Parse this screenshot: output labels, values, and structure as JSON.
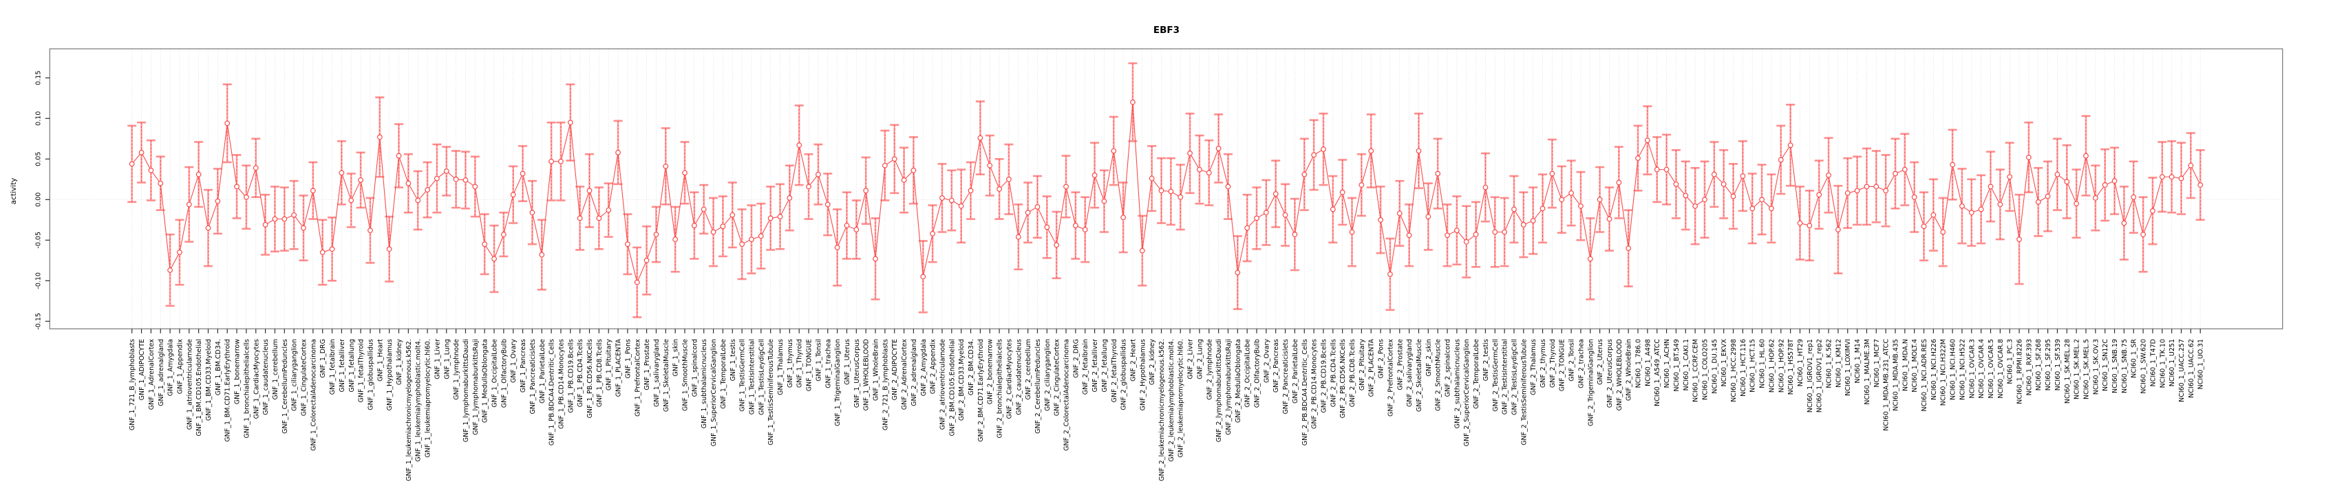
{
  "chart_data": {
    "type": "line",
    "title": "EBF3",
    "xlabel": "",
    "ylabel": "activity",
    "ylim": [
      -0.1593,
      0.1858
    ],
    "yticks": [
      0.15,
      0.1,
      0.05,
      0.0,
      -0.05,
      -0.1,
      -0.15
    ],
    "ytick_labels": [
      "0.15",
      "0.10",
      "0.05",
      "0.00",
      "-0.05",
      "-0.10",
      "-0.15"
    ],
    "grid": "dotted vertical gridline per category; dotted horizontal line at y=0",
    "legend": "none",
    "marker": "open-circle",
    "error_bars": "symmetric, capped, dashed center line",
    "colors": {
      "line": "#f84b4b",
      "point": "#f84b4b",
      "error_dash": "#f84b4b",
      "error_line": "#ffa4a4",
      "error_cap": "#ff8c8c",
      "grid": "#d4d4d4",
      "zero_line": "#dcdcdc",
      "frame": "#818181",
      "tick": "#2b2b2b",
      "text": "#000000"
    },
    "categories": [
      "GNF_1_721_B_lymphoblasts",
      "GNF_1_ADIPOCYTE",
      "GNF_1_AdrenalCortex",
      "GNF_1_adrenalgland",
      "GNF_1_Amygdala",
      "GNF_1_Appendix",
      "GNF_1_atrioventricularnode",
      "GNF_1_BM.CD105.Endothelial",
      "GNF_1_BM.CD33.Myeloid",
      "GNF_1_BM.CD34.",
      "GNF_1_BM.CD71.EarlyErythroid",
      "GNF_1_bonemarrow",
      "GNF_1_bronchialepithelialcells",
      "GNF_1_CardiacMyocytes",
      "GNF_1_caudatenucleus",
      "GNF_1_cerebellum",
      "GNF_1_CerebellumPeduncles",
      "GNF_1_ciliaryganglion",
      "GNF_1_CingulateCortex",
      "GNF_1_ColorectalAdenocarcinoma",
      "GNF_1_DRG",
      "GNF_1_fetalbrain",
      "GNF_1_fetalliver",
      "GNF_1_fetallung",
      "GNF_1_fetalThyroid",
      "GNF_1_globuspallidus",
      "GNF_1_Heart",
      "GNF_1_Hypothalamus",
      "GNF_1_kidney",
      "GNF_1_leukemiachronicmyelogenous.k562.",
      "GNF_1_leukemialymphoblastic.molt4.",
      "GNF_1_leukemiapromyelocytic.hl60.",
      "GNF_1_Liver",
      "GNF_1_Lung",
      "GNF_1_lymphnode",
      "GNF_1_lymphomaburkittsDaudi",
      "GNF_1_lymphomaburkittsRaji",
      "GNF_1_MedullaOblongata",
      "GNF_1_OccipitalLobe",
      "GNF_1_OlfactoryBulb",
      "GNF_1_Ovary",
      "GNF_1_Pancreas",
      "GNF_1_Pancreaticislets",
      "GNF_1_ParietalLobe",
      "GNF_1_PB.BDCA4.Dentritic_Cells",
      "GNF_1_PB.CD14.Monocytes",
      "GNF_1_PB.CD19.Bcells",
      "GNF_1_PB.CD4.Tcells",
      "GNF_1_PB.CD56.NKCells",
      "GNF_1_PB.CD8.Tcells",
      "GNF_1_Pituitary",
      "GNF_1_PLACENTA",
      "GNF_1_Pons",
      "GNF_1_PrefrontalCortex",
      "GNF_1_Prostate",
      "GNF_1_salivarygland",
      "GNF_1_SkeletalMuscle",
      "GNF_1_skin",
      "GNF_1_SmoothMuscle",
      "GNF_1_spinalcord",
      "GNF_1_subthalamicnucleus",
      "GNF_1_SuperiorCervicalGanglion",
      "GNF_1_TemporalLobe",
      "GNF_1_testis",
      "GNF_1_TestisGermCell",
      "GNF_1_TestisInterstitial",
      "GNF_1_TestisLeydigCell",
      "GNF_1_TestisSeminiferousTubule",
      "GNF_1_Thalamus",
      "GNF_1_thymus",
      "GNF_1_Thyroid",
      "GNF_1_TONGUE",
      "GNF_1_Tonsil",
      "GNF_1_trachea",
      "GNF_1_TrigeminalGanglion",
      "GNF_1_Uterus",
      "GNF_1_UterusCorpus",
      "GNF_1_WHOLEBLOOD",
      "GNF_1_WholeBrain",
      "GNF_2_721_B_lymphoblasts",
      "GNF_2_ADIPOCYTE",
      "GNF_2_AdrenalCortex",
      "GNF_2_adrenalgland",
      "GNF_2_Amygdala",
      "GNF_2_Appendix",
      "GNF_2_atrioventricularnode",
      "GNF_2_BM.CD105.Endothelial",
      "GNF_2_BM.CD33.Myeloid",
      "GNF_2_BM.CD34.",
      "GNF_2_BM.CD71.EarlyErythroid",
      "GNF_2_bonemarrow",
      "GNF_2_bronchialepithelialcells",
      "GNF_2_CardiacMyocytes",
      "GNF_2_caudatenucleus",
      "GNF_2_cerebellum",
      "GNF_2_CerebellumPeduncles",
      "GNF_2_ciliaryganglion",
      "GNF_2_CingulateCortex",
      "GNF_2_ColorectalAdenocarcinoma",
      "GNF_2_DRG",
      "GNF_2_fetalbrain",
      "GNF_2_fetalliver",
      "GNF_2_fetallung",
      "GNF_2_fetalThyroid",
      "GNF_2_globuspallidus",
      "GNF_2_Heart",
      "GNF_2_Hypothalamus",
      "GNF_2_kidney",
      "GNF_2_leukemiachronicmyelogenous.k562.",
      "GNF_2_leukemialymphoblastic.molt4.",
      "GNF_2_leukemiapromyelocytic.hl60.",
      "GNF_2_Liver",
      "GNF_2_Lung",
      "GNF_2_lymphnode",
      "GNF_2_lymphomaburkittsDaudi",
      "GNF_2_lymphomaburkittsRaji",
      "GNF_2_MedullaOblongata",
      "GNF_2_OccipitalLobe",
      "GNF_2_OlfactoryBulb",
      "GNF_2_Ovary",
      "GNF_2_Pancreas",
      "GNF_2_Pancreaticislets",
      "GNF_2_ParietalLobe",
      "GNF_2_PB.BDCA4.Dentritic_Cells",
      "GNF_2_PB.CD14.Monocytes",
      "GNF_2_PB.CD19.Bcells",
      "GNF_2_PB.CD4.Tcells",
      "GNF_2_PB.CD56.NKCells",
      "GNF_2_PB.CD8.Tcells",
      "GNF_2_Pituitary",
      "GNF_2_PLACENTA",
      "GNF_2_Pons",
      "GNF_2_PrefrontalCortex",
      "GNF_2_Prostate",
      "GNF_2_salivarygland",
      "GNF_2_SkeletalMuscle",
      "GNF_2_skin",
      "GNF_2_SmoothMuscle",
      "GNF_2_spinalcord",
      "GNF_2_subthalamicnucleus",
      "GNF_2_SuperiorCervicalGanglion",
      "GNF_2_TemporalLobe",
      "GNF_2_testis",
      "GNF_2_TestisGermCell",
      "GNF_2_TestisInterstitial",
      "GNF_2_TestisLeydigCell",
      "GNF_2_TestisSeminiferousTubule",
      "GNF_2_Thalamus",
      "GNF_2_thymus",
      "GNF_2_Thyroid",
      "GNF_2_TONGUE",
      "GNF_2_Tonsil",
      "GNF_2_trachea",
      "GNF_2_TrigeminalGanglion",
      "GNF_2_Uterus",
      "GNF_2_UterusCorpus",
      "GNF_2_WHOLEBLOOD",
      "GNF_2_WholeBrain",
      "NCI60_1_786.0",
      "NCI60_1_A498",
      "NCI60_1_A549_ATCC",
      "NCI60_1_ACHN",
      "NCI60_1_BT.549",
      "NCI60_1_CAKI.1",
      "NCI60_1_CCRF.CEM",
      "NCI60_1_COLO205",
      "NCI60_1_DU.145",
      "NCI60_1_EKVX",
      "NCI60_1_HCC.2998",
      "NCI60_1_HCT.116",
      "NCI60_1_HCT.15",
      "NCI60_1_HL.60",
      "NCI60_1_HOP.62",
      "NCI60_1_HOP.92",
      "NCI60_1_HS578T",
      "NCI60_1_HT29",
      "NCI60_1_IGROV1_rep1",
      "NCI60_1_IGROV1_rep2",
      "NCI60_1_K.562",
      "NCI60_1_KM12",
      "NCI60_1_LOXIMVI",
      "NCI60_1_M14",
      "NCI60_1_MALME.3M",
      "NCI60_1_MCF7",
      "NCI60_1_MDA.MB.231_ATCC",
      "NCI60_1_MDA.MB.435",
      "NCI60_1_MDA.N",
      "NCI60_1_MOLT.4",
      "NCI60_1_NCI.ADR.RES",
      "NCI60_1_NCI.H226",
      "NCI60_1_NCI.H322M",
      "NCI60_1_NCI.H460",
      "NCI60_1_NCI.H522",
      "NCI60_1_OVCAR.3",
      "NCI60_1_OVCAR.4",
      "NCI60_1_OVCAR.5",
      "NCI60_1_OVCAR.8",
      "NCI60_1_PC.3",
      "NCI60_1_RPMI.8226",
      "NCI60_1_RXF.393",
      "NCI60_1_SF.268",
      "NCI60_1_SF.295",
      "NCI60_1_SF.539",
      "NCI60_1_SK.MEL.28",
      "NCI60_1_SK.MEL.2",
      "NCI60_1_SK.MEL.5",
      "NCI60_1_SK.OV.3",
      "NCI60_1_SN12C",
      "NCI60_1_SNB.19",
      "NCI60_1_SNB.75",
      "NCI60_1_SR",
      "NCI60_1_SW.620",
      "NCI60_1_T47D",
      "NCI60_1_TK.10",
      "NCI60_1_U251",
      "NCI60_1_UACC.257",
      "NCI60_1_UACC.62",
      "NCI60_1_UO.31"
    ],
    "series": [
      {
        "name": "activity",
        "values": [
          0.044,
          0.058,
          0.036,
          0.02,
          -0.087,
          -0.065,
          -0.006,
          0.031,
          -0.035,
          -0.002,
          0.094,
          0.016,
          0.003,
          0.039,
          -0.031,
          -0.024,
          -0.024,
          -0.019,
          -0.035,
          0.011,
          -0.065,
          -0.061,
          0.033,
          -0.001,
          0.024,
          -0.038,
          0.077,
          -0.061,
          0.054,
          0.02,
          -0.001,
          0.012,
          0.026,
          0.035,
          0.025,
          0.024,
          0.016,
          -0.055,
          -0.073,
          -0.043,
          0.006,
          0.032,
          -0.016,
          -0.068,
          0.047,
          0.047,
          0.095,
          -0.023,
          0.011,
          -0.023,
          -0.013,
          0.058,
          -0.055,
          -0.102,
          -0.075,
          -0.043,
          0.041,
          -0.049,
          0.033,
          -0.032,
          -0.012,
          -0.04,
          -0.033,
          -0.019,
          -0.055,
          -0.049,
          -0.045,
          -0.023,
          -0.021,
          0.002,
          0.067,
          0.016,
          0.031,
          -0.006,
          -0.059,
          -0.032,
          -0.037,
          0.011,
          -0.073,
          0.042,
          0.05,
          0.024,
          0.036,
          -0.095,
          -0.042,
          0.002,
          -0.001,
          -0.008,
          0.011,
          0.076,
          0.042,
          0.013,
          0.025,
          -0.046,
          -0.016,
          -0.009,
          -0.034,
          -0.056,
          0.016,
          -0.032,
          -0.037,
          0.03,
          -0.002,
          0.06,
          -0.022,
          0.12,
          -0.063,
          0.026,
          0.011,
          0.01,
          0.003,
          0.057,
          0.037,
          0.033,
          0.063,
          0.016,
          -0.09,
          -0.035,
          -0.023,
          -0.016,
          0.007,
          -0.019,
          -0.043,
          0.031,
          0.055,
          0.062,
          -0.012,
          0.009,
          -0.04,
          0.018,
          0.06,
          -0.025,
          -0.092,
          -0.017,
          -0.044,
          0.06,
          -0.021,
          0.032,
          -0.044,
          -0.038,
          -0.052,
          -0.043,
          0.015,
          -0.04,
          -0.04,
          -0.012,
          -0.031,
          -0.026,
          -0.011,
          0.032,
          0.0,
          0.008,
          -0.008,
          -0.073,
          0.0,
          -0.024,
          0.021,
          -0.06,
          0.051,
          0.073,
          0.037,
          0.037,
          0.019,
          0.005,
          -0.008,
          0.0,
          0.031,
          0.019,
          0.004,
          0.029,
          -0.011,
          0.0,
          -0.011,
          0.049,
          0.067,
          -0.029,
          -0.032,
          0.006,
          0.03,
          -0.037,
          0.008,
          0.011,
          0.016,
          0.016,
          0.011,
          0.032,
          0.037,
          0.003,
          -0.033,
          -0.019,
          -0.04,
          0.043,
          -0.008,
          -0.016,
          -0.012,
          0.016,
          -0.006,
          0.028,
          -0.049,
          0.052,
          -0.003,
          0.004,
          0.031,
          0.022,
          -0.005,
          0.054,
          0.002,
          0.018,
          0.023,
          -0.029,
          0.003,
          -0.043,
          -0.014,
          0.028,
          0.028,
          0.026,
          0.042,
          0.018
        ],
        "errors": [
          0.047,
          0.037,
          0.037,
          0.033,
          0.044,
          0.04,
          0.046,
          0.04,
          0.047,
          0.04,
          0.048,
          0.039,
          0.039,
          0.036,
          0.037,
          0.04,
          0.039,
          0.042,
          0.04,
          0.035,
          0.04,
          0.039,
          0.039,
          0.033,
          0.034,
          0.04,
          0.049,
          0.04,
          0.039,
          0.036,
          0.036,
          0.034,
          0.042,
          0.03,
          0.035,
          0.035,
          0.037,
          0.037,
          0.041,
          0.027,
          0.035,
          0.034,
          0.039,
          0.043,
          0.048,
          0.048,
          0.047,
          0.039,
          0.045,
          0.038,
          0.033,
          0.039,
          0.037,
          0.043,
          0.042,
          0.034,
          0.047,
          0.04,
          0.038,
          0.041,
          0.03,
          0.042,
          0.037,
          0.04,
          0.043,
          0.042,
          0.04,
          0.039,
          0.04,
          0.04,
          0.049,
          0.04,
          0.037,
          0.038,
          0.047,
          0.041,
          0.036,
          0.041,
          0.05,
          0.043,
          0.042,
          0.04,
          0.041,
          0.044,
          0.035,
          0.042,
          0.037,
          0.045,
          0.035,
          0.045,
          0.037,
          0.037,
          0.043,
          0.04,
          0.037,
          0.038,
          0.038,
          0.041,
          0.038,
          0.041,
          0.04,
          0.04,
          0.038,
          0.042,
          0.043,
          0.048,
          0.043,
          0.04,
          0.04,
          0.041,
          0.04,
          0.049,
          0.042,
          0.04,
          0.042,
          0.04,
          0.045,
          0.041,
          0.038,
          0.04,
          0.041,
          0.038,
          0.044,
          0.044,
          0.043,
          0.044,
          0.041,
          0.04,
          0.042,
          0.038,
          0.045,
          0.041,
          0.044,
          0.04,
          0.038,
          0.046,
          0.041,
          0.043,
          0.038,
          0.042,
          0.044,
          0.04,
          0.042,
          0.043,
          0.042,
          0.041,
          0.04,
          0.041,
          0.042,
          0.042,
          0.041,
          0.04,
          0.042,
          0.05,
          0.04,
          0.039,
          0.044,
          0.047,
          0.04,
          0.042,
          0.04,
          0.043,
          0.042,
          0.042,
          0.047,
          0.047,
          0.04,
          0.042,
          0.04,
          0.043,
          0.043,
          0.043,
          0.042,
          0.042,
          0.05,
          0.045,
          0.043,
          0.042,
          0.046,
          0.054,
          0.043,
          0.042,
          0.047,
          0.044,
          0.044,
          0.043,
          0.044,
          0.043,
          0.042,
          0.044,
          0.042,
          0.043,
          0.046,
          0.041,
          0.042,
          0.043,
          0.043,
          0.042,
          0.055,
          0.043,
          0.042,
          0.043,
          0.044,
          0.045,
          0.042,
          0.049,
          0.04,
          0.044,
          0.041,
          0.045,
          0.044,
          0.046,
          0.041,
          0.043,
          0.044,
          0.044,
          0.04,
          0.043
        ]
      }
    ]
  }
}
